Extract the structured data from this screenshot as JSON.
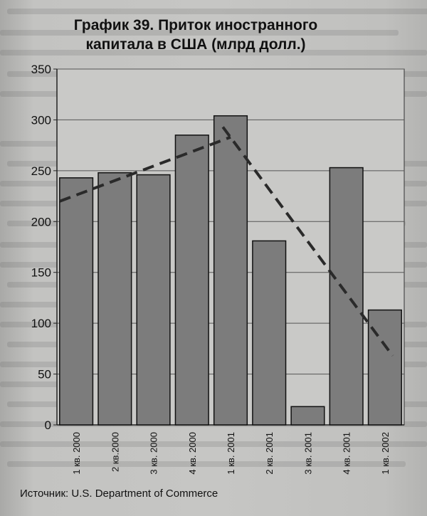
{
  "chart_data": {
    "type": "bar",
    "title_line1": "График 39. Приток иностранного",
    "title_line2": "капитала в США (млрд долл.)",
    "source": "Источник: U.S. Department of Commerce",
    "categories": [
      "1 кв. 2000",
      "2 кв.2000",
      "3 кв. 2000",
      "4 кв. 2000",
      "1 кв. 2001",
      "2 кв. 2001",
      "3 кв. 2001",
      "4 кв. 2001",
      "1 кв. 2002"
    ],
    "values": [
      243,
      248,
      246,
      285,
      304,
      181,
      18,
      253,
      113
    ],
    "ylim": [
      0,
      350
    ],
    "yticks": [
      0,
      50,
      100,
      150,
      200,
      250,
      300,
      350
    ],
    "trend_lines": [
      {
        "x_from": 0,
        "y_from": 220,
        "x_to": 4.5,
        "y_to": 283
      },
      {
        "x_from": 4.3,
        "y_from": 293,
        "x_to": 8.7,
        "y_to": 68
      }
    ],
    "grid": true,
    "colors": {
      "bar": "#7c7c7c",
      "bar_edge": "#111111",
      "line": "#2a2a2a",
      "plot_bg": "#c9c9c7"
    }
  }
}
